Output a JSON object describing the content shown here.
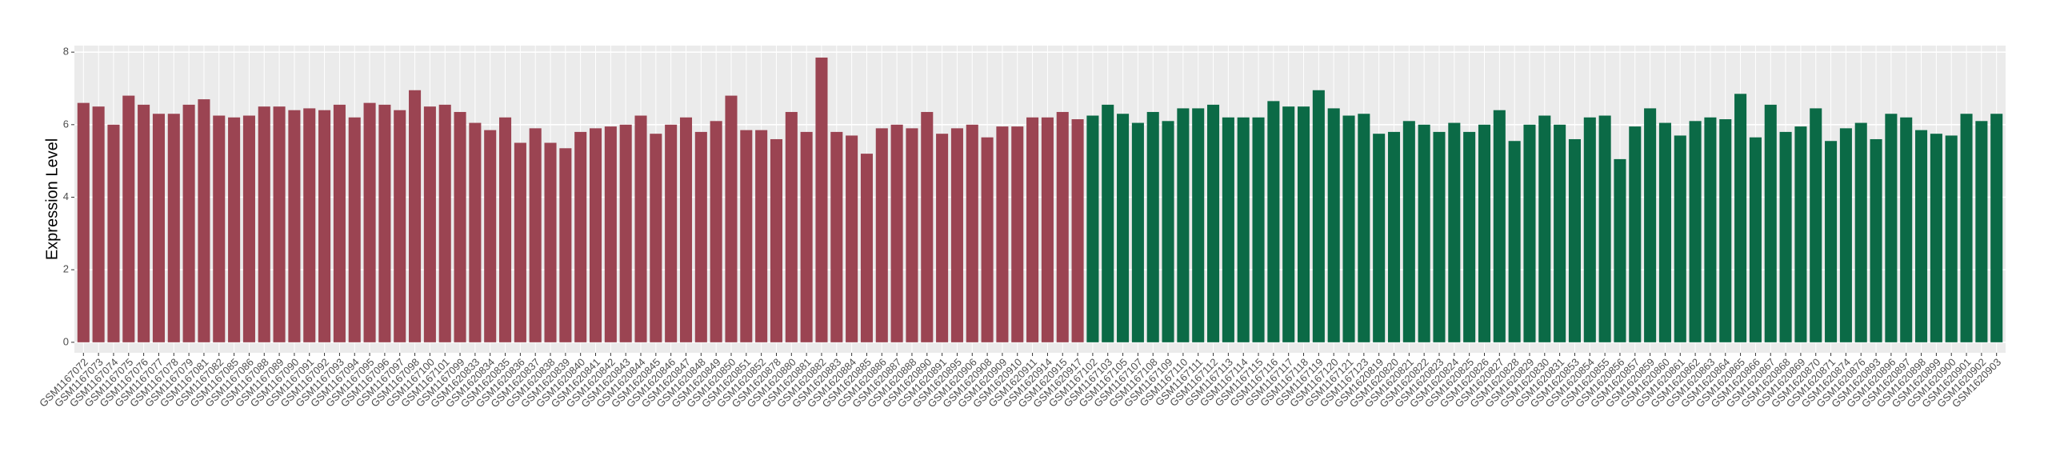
{
  "chart_data": {
    "type": "bar",
    "y_label": "Expression Level",
    "categories": [
      "GSM1167072",
      "GSM1167073",
      "GSM1167074",
      "GSM1167075",
      "GSM1167076",
      "GSM1167077",
      "GSM1167078",
      "GSM1167079",
      "GSM1167081",
      "GSM1167082",
      "GSM1167085",
      "GSM1167086",
      "GSM1167088",
      "GSM1167089",
      "GSM1167090",
      "GSM1167091",
      "GSM1167092",
      "GSM1167093",
      "GSM1167094",
      "GSM1167095",
      "GSM1167096",
      "GSM1167097",
      "GSM1167098",
      "GSM1167100",
      "GSM1167101",
      "GSM1167099",
      "GSM1620833",
      "GSM1620834",
      "GSM1620835",
      "GSM1620836",
      "GSM1620837",
      "GSM1620838",
      "GSM1620839",
      "GSM1620840",
      "GSM1620841",
      "GSM1620842",
      "GSM1620843",
      "GSM1620844",
      "GSM1620845",
      "GSM1620846",
      "GSM1620847",
      "GSM1620848",
      "GSM1620849",
      "GSM1620850",
      "GSM1620851",
      "GSM1620852",
      "GSM1620878",
      "GSM1620880",
      "GSM1620881",
      "GSM1620882",
      "GSM1620883",
      "GSM1620884",
      "GSM1620885",
      "GSM1620886",
      "GSM1620887",
      "GSM1620888",
      "GSM1620890",
      "GSM1620891",
      "GSM1620895",
      "GSM1620906",
      "GSM1620908",
      "GSM1620909",
      "GSM1620910",
      "GSM1620911",
      "GSM1620914",
      "GSM1620915",
      "GSM1620917",
      "GSM1167102",
      "GSM1167103",
      "GSM1167105",
      "GSM1167107",
      "GSM1167108",
      "GSM1167109",
      "GSM1167110",
      "GSM1167111",
      "GSM1167112",
      "GSM1167113",
      "GSM1167114",
      "GSM1167115",
      "GSM1167116",
      "GSM1167117",
      "GSM1167118",
      "GSM1167119",
      "GSM1167120",
      "GSM1167121",
      "GSM1167123",
      "GSM1620819",
      "GSM1620820",
      "GSM1620821",
      "GSM1620822",
      "GSM1620823",
      "GSM1620824",
      "GSM1620825",
      "GSM1620826",
      "GSM1620827",
      "GSM1620828",
      "GSM1620829",
      "GSM1620830",
      "GSM1620831",
      "GSM1620853",
      "GSM1620854",
      "GSM1620855",
      "GSM1620856",
      "GSM1620857",
      "GSM1620859",
      "GSM1620860",
      "GSM1620861",
      "GSM1620862",
      "GSM1620863",
      "GSM1620864",
      "GSM1620865",
      "GSM1620866",
      "GSM1620867",
      "GSM1620868",
      "GSM1620869",
      "GSM1620870",
      "GSM1620871",
      "GSM1620874",
      "GSM1620876",
      "GSM1620893",
      "GSM1620896",
      "GSM1620897",
      "GSM1620898",
      "GSM1620899",
      "GSM1620900",
      "GSM1620901",
      "GSM1620902",
      "GSM1620903"
    ],
    "values": [
      6.6,
      6.5,
      6.0,
      6.8,
      6.55,
      6.3,
      6.3,
      6.55,
      6.7,
      6.25,
      6.2,
      6.25,
      6.5,
      6.5,
      6.4,
      6.45,
      6.4,
      6.55,
      6.2,
      6.6,
      6.55,
      6.4,
      6.95,
      6.5,
      6.55,
      6.35,
      6.05,
      5.85,
      6.2,
      5.5,
      5.9,
      5.5,
      5.35,
      5.8,
      5.9,
      5.95,
      6.0,
      6.25,
      5.75,
      6.0,
      6.2,
      5.8,
      6.1,
      6.8,
      5.85,
      5.85,
      5.6,
      6.35,
      5.8,
      7.85,
      5.8,
      5.7,
      5.2,
      5.9,
      6.0,
      5.9,
      6.35,
      5.75,
      5.9,
      6.0,
      5.65,
      5.95,
      5.95,
      6.2,
      6.2,
      6.35,
      6.15,
      6.25,
      6.55,
      6.3,
      6.05,
      6.35,
      6.1,
      6.45,
      6.45,
      6.55,
      6.2,
      6.2,
      6.2,
      6.65,
      6.5,
      6.5,
      6.95,
      6.45,
      6.25,
      6.3,
      5.75,
      5.8,
      6.1,
      6.0,
      5.8,
      6.05,
      5.8,
      6.0,
      6.4,
      5.55,
      6.0,
      6.25,
      6.0,
      5.6,
      6.2,
      6.25,
      5.05,
      5.95,
      6.45,
      6.05,
      5.7,
      6.1,
      6.2,
      6.15,
      6.85,
      5.65,
      6.55,
      5.8,
      5.95,
      6.45,
      5.55,
      5.9,
      6.05,
      5.6,
      6.3,
      6.2,
      5.85,
      5.75,
      5.7,
      6.3,
      6.1,
      6.3
    ],
    "colors": [
      "#9b4452",
      "#9b4452",
      "#9b4452",
      "#9b4452",
      "#9b4452",
      "#9b4452",
      "#9b4452",
      "#9b4452",
      "#9b4452",
      "#9b4452",
      "#9b4452",
      "#9b4452",
      "#9b4452",
      "#9b4452",
      "#9b4452",
      "#9b4452",
      "#9b4452",
      "#9b4452",
      "#9b4452",
      "#9b4452",
      "#9b4452",
      "#9b4452",
      "#9b4452",
      "#9b4452",
      "#9b4452",
      "#9b4452",
      "#9b4452",
      "#9b4452",
      "#9b4452",
      "#9b4452",
      "#9b4452",
      "#9b4452",
      "#9b4452",
      "#9b4452",
      "#9b4452",
      "#9b4452",
      "#9b4452",
      "#9b4452",
      "#9b4452",
      "#9b4452",
      "#9b4452",
      "#9b4452",
      "#9b4452",
      "#9b4452",
      "#9b4452",
      "#9b4452",
      "#9b4452",
      "#9b4452",
      "#9b4452",
      "#9b4452",
      "#9b4452",
      "#9b4452",
      "#9b4452",
      "#9b4452",
      "#9b4452",
      "#9b4452",
      "#9b4452",
      "#9b4452",
      "#9b4452",
      "#9b4452",
      "#9b4452",
      "#9b4452",
      "#9b4452",
      "#9b4452",
      "#9b4452",
      "#9b4452",
      "#9b4452",
      "#0b6a46",
      "#0b6a46",
      "#0b6a46",
      "#0b6a46",
      "#0b6a46",
      "#0b6a46",
      "#0b6a46",
      "#0b6a46",
      "#0b6a46",
      "#0b6a46",
      "#0b6a46",
      "#0b6a46",
      "#0b6a46",
      "#0b6a46",
      "#0b6a46",
      "#0b6a46",
      "#0b6a46",
      "#0b6a46",
      "#0b6a46",
      "#0b6a46",
      "#0b6a46",
      "#0b6a46",
      "#0b6a46",
      "#0b6a46",
      "#0b6a46",
      "#0b6a46",
      "#0b6a46",
      "#0b6a46",
      "#0b6a46",
      "#0b6a46",
      "#0b6a46",
      "#0b6a46",
      "#0b6a46",
      "#0b6a46",
      "#0b6a46",
      "#0b6a46",
      "#0b6a46",
      "#0b6a46",
      "#0b6a46",
      "#0b6a46",
      "#0b6a46",
      "#0b6a46",
      "#0b6a46",
      "#0b6a46",
      "#0b6a46",
      "#0b6a46",
      "#0b6a46",
      "#0b6a46",
      "#0b6a46",
      "#0b6a46",
      "#0b6a46",
      "#0b6a46",
      "#0b6a46",
      "#0b6a46",
      "#0b6a46",
      "#0b6a46",
      "#0b6a46",
      "#0b6a46",
      "#0b6a46",
      "#0b6a46",
      "#0b6a46"
    ],
    "ylim": [
      -0.29,
      8.18
    ],
    "yticks": [
      0,
      2,
      4,
      6,
      8
    ],
    "grid": true
  }
}
